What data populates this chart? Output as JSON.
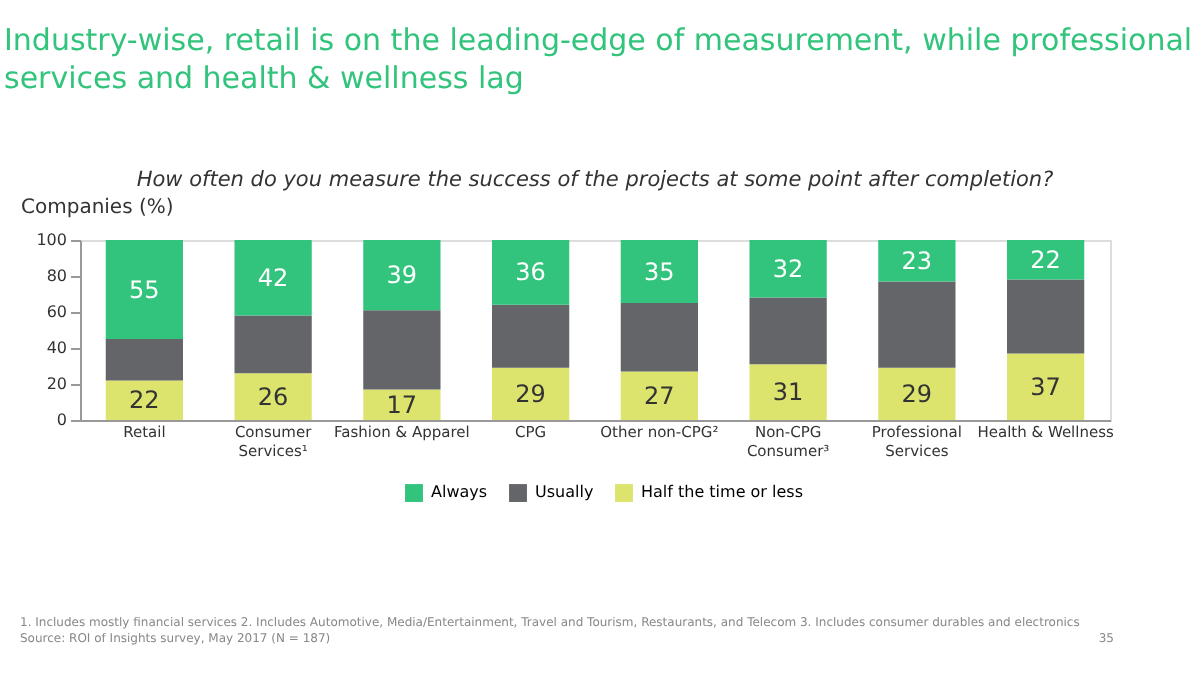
{
  "chart_data": {
    "type": "bar",
    "stacked": true,
    "title": "Industry-wise, retail is on the leading-edge of measurement, while professional services and health & wellness lag",
    "subtitle": "How often do you measure the success of the projects at some point after completion?",
    "ylabel": "Companies (%)",
    "categories": [
      "Retail",
      "Consumer\nServices¹",
      "Fashion & Apparel",
      "CPG",
      "Other non-CPG²",
      "Non-CPG\nConsumer³",
      "Professional\nServices",
      "Health & Wellness"
    ],
    "series": [
      {
        "name": "Half the time or less",
        "color": "#dce46e",
        "values": [
          22,
          26,
          17,
          29,
          27,
          31,
          29,
          37
        ],
        "value_labels": [
          "22",
          "26",
          "17",
          "29",
          "27",
          "31",
          "29",
          "37"
        ]
      },
      {
        "name": "Usually",
        "color": "#646569",
        "values": [
          23,
          32,
          44,
          35,
          38,
          37,
          48,
          41
        ]
      },
      {
        "name": "Always",
        "color": "#32c47c",
        "values": [
          55,
          42,
          39,
          36,
          35,
          32,
          23,
          22
        ],
        "value_labels": [
          "55",
          "42",
          "39",
          "36",
          "35",
          "32",
          "23",
          "22"
        ]
      }
    ],
    "ylim": [
      0,
      100
    ],
    "yticks": [
      0,
      20,
      40,
      60,
      80,
      100
    ],
    "grid": false,
    "legend": "bottom",
    "annotations": [
      "1. Includes mostly financial services  2. Includes Automotive, Media/Entertainment, Travel and Tourism, Restaurants, and Telecom  3. Includes consumer durables and electronics",
      "Source: ROI of Insights survey, May 2017 (N = 187)",
      "35"
    ]
  }
}
